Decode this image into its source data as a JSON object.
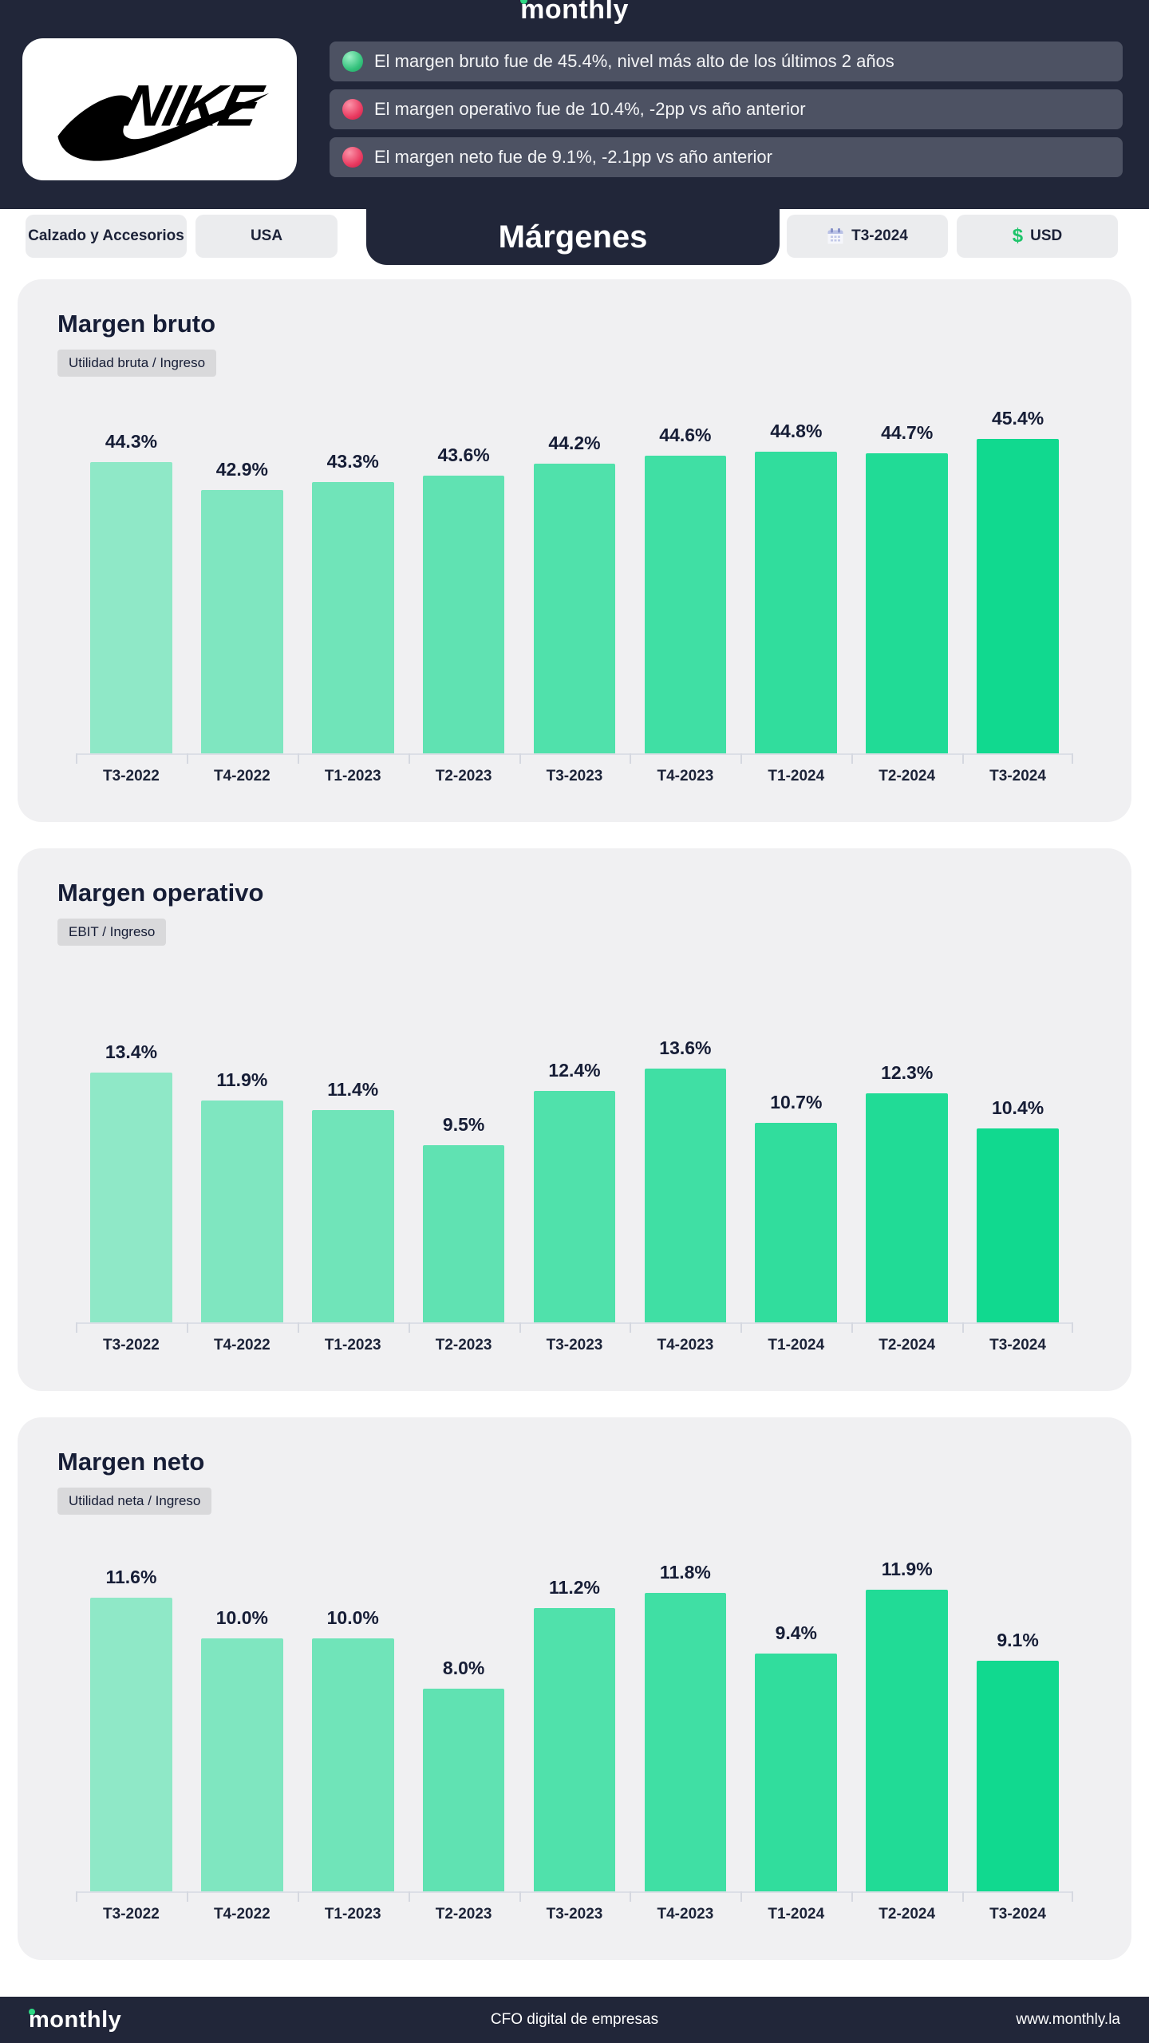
{
  "brand": {
    "logo_text": "monthly",
    "footer_tagline": "CFO digital de empresas",
    "footer_url": "www.monthly.la"
  },
  "header": {
    "company": "NIKE",
    "bullets": [
      {
        "icon": "green-status-dot",
        "text": "El margen bruto fue de 45.4%, nivel más alto de los últimos 2 años"
      },
      {
        "icon": "red-status-dot",
        "text": "El margen operativo fue de 10.4%, -2pp vs año anterior"
      },
      {
        "icon": "red-status-dot",
        "text": "El margen neto fue de 9.1%, -2.1pp vs año anterior"
      }
    ]
  },
  "filters": {
    "category": "Calzado y Accesorios",
    "region": "USA",
    "active_tab": "Márgenes",
    "period": "T3-2024",
    "currency": "USD"
  },
  "colors": {
    "navy": "#212639",
    "card_bg": "#f0f0f2",
    "chip_bg": "#ebecee",
    "badge_bg": "#d9d9db",
    "bullet_bg": "#4d5263",
    "bar_color_start": "#8FE8C7",
    "bar_color_end": "#11D98F",
    "positive_dot": "#34c27c",
    "negative_dot": "#e93a60"
  },
  "chart_data": [
    {
      "type": "bar",
      "title": "Margen bruto",
      "formula": "Utilidad bruta /  Ingreso",
      "unit": "%",
      "categories": [
        "T3-2022",
        "T4-2022",
        "T1-2023",
        "T2-2023",
        "T3-2023",
        "T4-2023",
        "T1-2024",
        "T2-2024",
        "T3-2024"
      ],
      "values": [
        44.3,
        42.9,
        43.3,
        43.6,
        44.2,
        44.6,
        44.8,
        44.7,
        45.4
      ],
      "ylim": [
        30,
        48
      ],
      "grid": false,
      "legend": "none"
    },
    {
      "type": "bar",
      "title": "Margen operativo",
      "formula": "EBIT /  Ingreso",
      "unit": "%",
      "categories": [
        "T3-2022",
        "T4-2022",
        "T1-2023",
        "T2-2023",
        "T3-2023",
        "T4-2023",
        "T1-2024",
        "T2-2024",
        "T3-2024"
      ],
      "values": [
        13.4,
        11.9,
        11.4,
        9.5,
        12.4,
        13.6,
        10.7,
        12.3,
        10.4
      ],
      "ylim": [
        0,
        19.7
      ],
      "grid": false,
      "legend": "none"
    },
    {
      "type": "bar",
      "title": "Margen neto",
      "formula": "Utilidad neta /  Ingreso",
      "unit": "%",
      "categories": [
        "T3-2022",
        "T4-2022",
        "T1-2023",
        "T2-2023",
        "T3-2023",
        "T4-2023",
        "T1-2024",
        "T2-2024",
        "T3-2024"
      ],
      "values": [
        11.6,
        10.0,
        10.0,
        8.0,
        11.2,
        11.8,
        9.4,
        11.9,
        9.1
      ],
      "ylim": [
        0,
        14.5
      ],
      "grid": false,
      "legend": "none"
    }
  ]
}
